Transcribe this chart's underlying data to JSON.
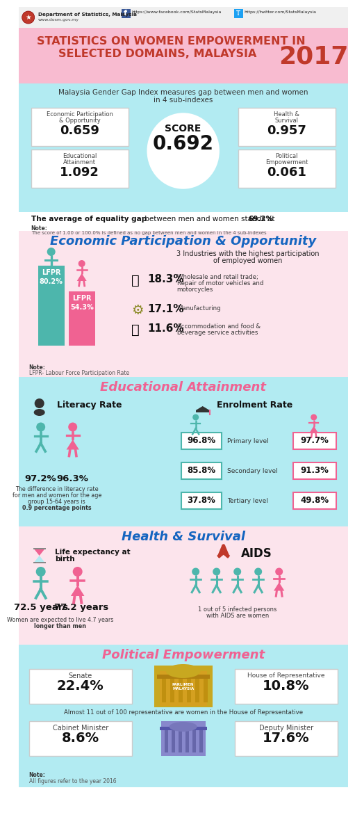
{
  "header_bg": "#e8e8e8",
  "title_bg": "#f8bbd0",
  "title_line1": "STATISTICS ON WOMEN EMPOWERMENT IN",
  "title_line2": "SELECTED DOMAINS, MALAYSIA",
  "title_year": "2017",
  "title_color": "#c0392b",
  "score_section_bg": "#b2ebf2",
  "subtitle_text1": "Malaysia Gender Gap Index measures gap between men and women",
  "subtitle_text2": "in 4 sub-indexes",
  "score_label": "SCORE",
  "score_value": "0.692",
  "box_epo_label1": "Economic Participation",
  "box_epo_label2": "& Opportunity",
  "box_epo_value": "0.659",
  "box_hs_label1": "Health &",
  "box_hs_label2": "Survival",
  "box_hs_value": "0.957",
  "box_ea_label1": "Educational",
  "box_ea_label2": "Attainment",
  "box_ea_value": "1.092",
  "box_pe_label1": "Political",
  "box_pe_label2": "Empowerment",
  "box_pe_value": "0.061",
  "eq_gap_text1": "The average of equality gap",
  "eq_gap_text2": " between men and women stands at ",
  "eq_gap_value": "69.2%",
  "note1_title": "Note:",
  "note1_text": "The score of 1.00 or 100.0% is defined as no gap between men and women in the 4 sub-indexes",
  "s1_bg": "#fce4ec",
  "s1_title": "Economic Participation & Opportunity",
  "s1_title_color": "#1565c0",
  "lfpr_male_val": "80.2%",
  "lfpr_female_val": "54.3%",
  "lfpr_male_color": "#4db6ac",
  "lfpr_female_color": "#f06292",
  "ind_title1": "3 Industries with the highest participation",
  "ind_title2": "of employed women",
  "ind1_pct": "18.3%",
  "ind1_text1": "Wholesale and retail trade;",
  "ind1_text2": "Repair of motor vehicles and",
  "ind1_text3": "motorcycles",
  "ind2_pct": "17.1%",
  "ind2_text": "Manufacturing",
  "ind3_pct": "11.6%",
  "ind3_text1": "Accommodation and food &",
  "ind3_text2": "beverage service activities",
  "note2_title": "Note:",
  "note2_text": "LFPR- Labour Force Participation Rate",
  "s2_bg": "#b2ebf2",
  "s2_title": "Educational Attainment",
  "s2_title_color": "#f06292",
  "lit_male": "97.2%",
  "lit_female": "96.3%",
  "lit_diff1": "The difference in literacy rate",
  "lit_diff2": "for men and women for the age",
  "lit_diff3": "group 15-64 years is",
  "lit_diff4": "0.9 percentage points",
  "enr_pm": "96.8%",
  "enr_pf": "97.7%",
  "enr_sm": "85.8%",
  "enr_sf": "91.3%",
  "enr_tm": "37.8%",
  "enr_tf": "49.8%",
  "pl": "Primary level",
  "sl": "Secondary level",
  "tl": "Tertiary level",
  "teal": "#4db6ac",
  "pink": "#f06292",
  "s3_bg": "#fce4ec",
  "s3_title": "Health & Survival",
  "s3_title_color": "#1565c0",
  "le_label1": "Life expectancy at",
  "le_label2": "birth",
  "le_male": "72.5 years",
  "le_female": "77.2 years",
  "le_note1": "Women are expected to live 4.7 years",
  "le_note2": "longer than men",
  "aids_label": "AIDS",
  "aids_note1": "1 out of 5 infected persons",
  "aids_note2": "with AIDS are women",
  "s4_bg": "#b2ebf2",
  "s4_title": "Political Empowerment",
  "s4_title_color": "#f06292",
  "senate_lbl": "Senate",
  "senate_val": "22.4%",
  "house_lbl": "House of Representative",
  "house_val": "10.8%",
  "house_note": "Almost 11 out of 100 representative are women in the House of Representative",
  "cab_lbl": "Cabinet Minister",
  "cab_val": "8.6%",
  "dep_lbl": "Deputy Minister",
  "dep_val": "17.6%",
  "note_final1": "Note:",
  "note_final2": "All figures refer to the year 2016"
}
